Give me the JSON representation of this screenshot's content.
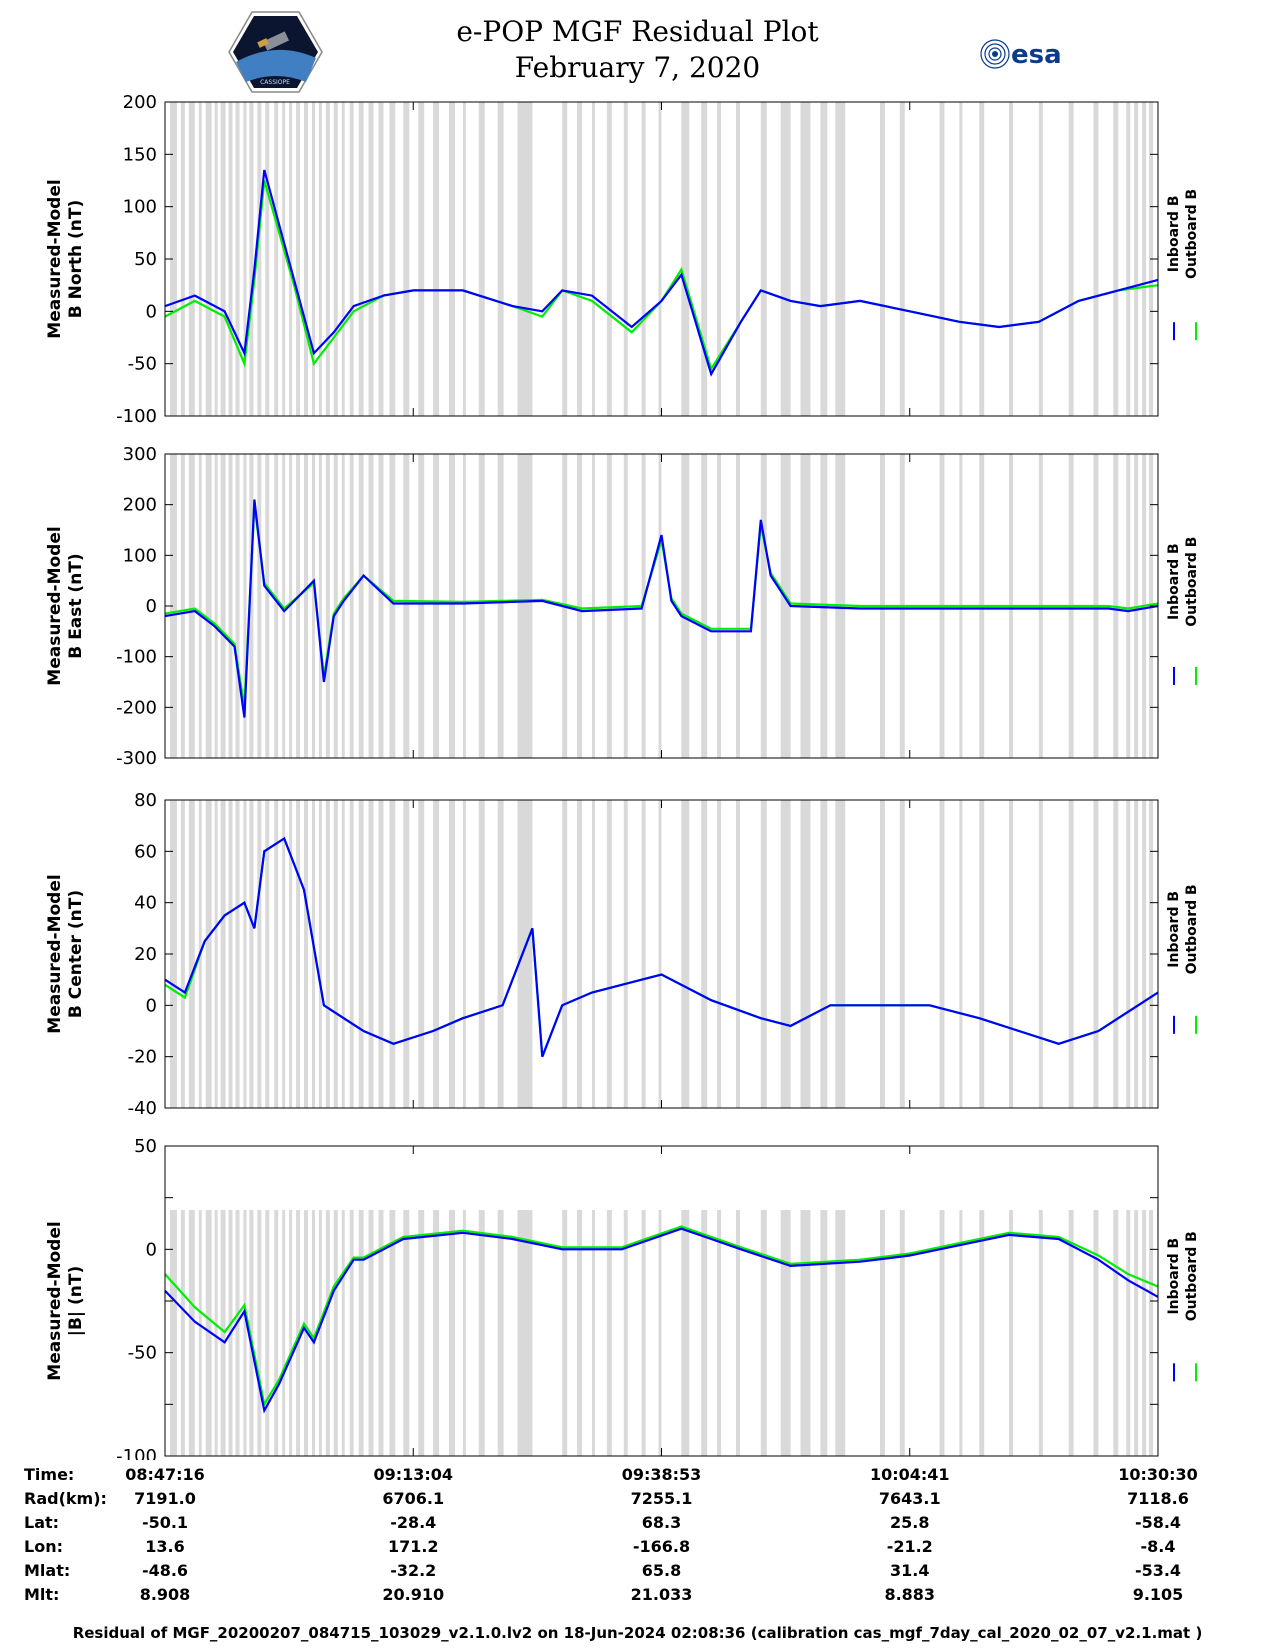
{
  "header": {
    "title_line1": "e-POP MGF Residual Plot",
    "title_line2": "February 7, 2020",
    "left_logo": "cassiope-mission-logo",
    "left_logo_text": "CASSIOPE",
    "right_logo_text": "esa"
  },
  "colors": {
    "inboard": "#0000ff",
    "outboard": "#00ee00",
    "gap_shading": "#d9d9d9"
  },
  "legend": {
    "inboard": "Inboard B",
    "outboard": "Outboard B"
  },
  "chart_data": [
    {
      "type": "line",
      "ylabel_line1": "Measured-Model",
      "ylabel_line2": "B North (nT)",
      "ylim": [
        -100,
        200
      ],
      "yticks": [
        "200",
        "150",
        "100",
        "50",
        "0",
        "-50",
        "-100"
      ],
      "xlim": [
        0,
        1
      ],
      "series": [
        {
          "name": "Inboard B",
          "x": [
            0,
            0.03,
            0.06,
            0.08,
            0.09,
            0.1,
            0.13,
            0.15,
            0.17,
            0.19,
            0.22,
            0.25,
            0.3,
            0.35,
            0.38,
            0.4,
            0.43,
            0.47,
            0.5,
            0.52,
            0.55,
            0.58,
            0.6,
            0.63,
            0.66,
            0.7,
            0.75,
            0.8,
            0.84,
            0.88,
            0.92,
            0.96,
            1.0
          ],
          "y": [
            5,
            15,
            0,
            -40,
            40,
            135,
            30,
            -40,
            -20,
            5,
            15,
            20,
            20,
            5,
            0,
            20,
            15,
            -15,
            10,
            35,
            -60,
            -10,
            20,
            10,
            5,
            10,
            0,
            -10,
            -15,
            -10,
            10,
            20,
            30
          ]
        },
        {
          "name": "Outboard B",
          "x": [
            0,
            0.03,
            0.06,
            0.08,
            0.09,
            0.1,
            0.13,
            0.15,
            0.17,
            0.19,
            0.22,
            0.25,
            0.3,
            0.35,
            0.38,
            0.4,
            0.43,
            0.47,
            0.5,
            0.52,
            0.55,
            0.58,
            0.6,
            0.63,
            0.66,
            0.7,
            0.75,
            0.8,
            0.84,
            0.88,
            0.92,
            0.96,
            1.0
          ],
          "y": [
            -5,
            10,
            -5,
            -50,
            30,
            125,
            25,
            -50,
            -25,
            0,
            15,
            20,
            20,
            5,
            -5,
            20,
            10,
            -20,
            10,
            40,
            -55,
            -10,
            20,
            10,
            5,
            10,
            0,
            -10,
            -15,
            -10,
            10,
            20,
            25
          ]
        }
      ]
    },
    {
      "type": "line",
      "ylabel_line1": "Measured-Model",
      "ylabel_line2": "B East (nT)",
      "ylim": [
        -300,
        300
      ],
      "yticks": [
        "300",
        "200",
        "100",
        "0",
        "-100",
        "-200",
        "-300"
      ],
      "xlim": [
        0,
        1
      ],
      "series": [
        {
          "name": "Inboard B",
          "x": [
            0,
            0.03,
            0.05,
            0.07,
            0.08,
            0.09,
            0.1,
            0.12,
            0.15,
            0.16,
            0.17,
            0.18,
            0.2,
            0.23,
            0.3,
            0.38,
            0.42,
            0.48,
            0.5,
            0.51,
            0.52,
            0.55,
            0.59,
            0.6,
            0.61,
            0.63,
            0.7,
            0.75,
            0.85,
            0.95,
            0.97,
            1.0
          ],
          "y": [
            -20,
            -10,
            -40,
            -80,
            -220,
            210,
            40,
            -10,
            50,
            -150,
            -20,
            10,
            60,
            5,
            5,
            10,
            -10,
            -5,
            140,
            10,
            -20,
            -50,
            -50,
            170,
            60,
            0,
            -5,
            -5,
            -5,
            -5,
            -10,
            0
          ]
        },
        {
          "name": "Outboard B",
          "x": [
            0,
            0.03,
            0.05,
            0.07,
            0.08,
            0.09,
            0.1,
            0.12,
            0.15,
            0.16,
            0.17,
            0.18,
            0.2,
            0.23,
            0.3,
            0.38,
            0.42,
            0.48,
            0.5,
            0.51,
            0.52,
            0.55,
            0.59,
            0.6,
            0.61,
            0.63,
            0.7,
            0.75,
            0.85,
            0.95,
            0.97,
            1.0
          ],
          "y": [
            -15,
            -5,
            -35,
            -75,
            -200,
            200,
            45,
            -5,
            45,
            -140,
            -15,
            15,
            60,
            10,
            8,
            12,
            -5,
            0,
            130,
            15,
            -15,
            -45,
            -45,
            160,
            65,
            5,
            0,
            0,
            0,
            0,
            -5,
            5
          ]
        }
      ]
    },
    {
      "type": "line",
      "ylabel_line1": "Measured-Model",
      "ylabel_line2": "B Center (nT)",
      "ylim": [
        -40,
        80
      ],
      "yticks": [
        "80",
        "60",
        "40",
        "20",
        "0",
        "-20",
        "-40"
      ],
      "xlim": [
        0,
        1
      ],
      "series": [
        {
          "name": "Inboard B",
          "x": [
            0,
            0.02,
            0.04,
            0.06,
            0.08,
            0.09,
            0.1,
            0.12,
            0.14,
            0.16,
            0.18,
            0.2,
            0.23,
            0.27,
            0.3,
            0.34,
            0.37,
            0.38,
            0.4,
            0.43,
            0.46,
            0.5,
            0.55,
            0.6,
            0.63,
            0.67,
            0.72,
            0.77,
            0.82,
            0.86,
            0.9,
            0.94,
            1.0
          ],
          "y": [
            10,
            5,
            25,
            35,
            40,
            30,
            60,
            65,
            45,
            0,
            -5,
            -10,
            -15,
            -10,
            -5,
            0,
            30,
            -20,
            0,
            5,
            8,
            12,
            2,
            -5,
            -8,
            0,
            0,
            0,
            -5,
            -10,
            -15,
            -10,
            5
          ]
        },
        {
          "name": "Outboard B",
          "x": [
            0,
            0.02,
            0.04,
            0.06,
            0.08,
            0.09,
            0.1,
            0.12,
            0.14,
            0.16,
            0.18,
            0.2,
            0.23,
            0.27,
            0.3,
            0.34,
            0.37,
            0.38,
            0.4,
            0.43,
            0.46,
            0.5,
            0.55,
            0.6,
            0.63,
            0.67,
            0.72,
            0.77,
            0.82,
            0.86,
            0.9,
            0.94,
            1.0
          ],
          "y": [
            8,
            3,
            25,
            35,
            40,
            30,
            60,
            65,
            45,
            0,
            -5,
            -10,
            -15,
            -10,
            -5,
            0,
            30,
            -20,
            0,
            5,
            8,
            12,
            2,
            -5,
            -8,
            0,
            0,
            0,
            -5,
            -10,
            -15,
            -10,
            5
          ]
        }
      ]
    },
    {
      "type": "line",
      "ylabel_line1": "Measured-Model",
      "ylabel_line2": "|B| (nT)",
      "ylim": [
        -100,
        50
      ],
      "yticks": [
        "50",
        "",
        "0",
        "",
        "-50",
        "",
        "-100"
      ],
      "xlim": [
        0,
        1
      ],
      "series": [
        {
          "name": "Inboard B",
          "x": [
            0,
            0.03,
            0.06,
            0.08,
            0.1,
            0.115,
            0.14,
            0.15,
            0.17,
            0.19,
            0.2,
            0.24,
            0.3,
            0.35,
            0.4,
            0.46,
            0.52,
            0.55,
            0.58,
            0.63,
            0.7,
            0.75,
            0.8,
            0.85,
            0.9,
            0.94,
            0.97,
            1.0
          ],
          "y": [
            -20,
            -35,
            -45,
            -30,
            -78,
            -65,
            -38,
            -45,
            -20,
            -5,
            -5,
            5,
            8,
            5,
            0,
            0,
            10,
            5,
            0,
            -8,
            -6,
            -3,
            2,
            7,
            5,
            -5,
            -15,
            -23
          ]
        },
        {
          "name": "Outboard B",
          "x": [
            0,
            0.03,
            0.06,
            0.08,
            0.1,
            0.115,
            0.14,
            0.15,
            0.17,
            0.19,
            0.2,
            0.24,
            0.3,
            0.35,
            0.4,
            0.46,
            0.52,
            0.55,
            0.58,
            0.63,
            0.7,
            0.75,
            0.8,
            0.85,
            0.9,
            0.94,
            0.97,
            1.0
          ],
          "y": [
            -12,
            -28,
            -40,
            -27,
            -75,
            -63,
            -36,
            -43,
            -18,
            -4,
            -4,
            6,
            9,
            6,
            1,
            1,
            11,
            6,
            1,
            -7,
            -5,
            -2,
            3,
            8,
            6,
            -3,
            -12,
            -18
          ]
        }
      ]
    }
  ],
  "time_axis": {
    "row_labels": [
      "Time:",
      "Rad(km):",
      "Lat:",
      "Lon:",
      "Mlat:",
      "Mlt:"
    ],
    "columns": [
      {
        "time": "08:47:16",
        "rad": "7191.0",
        "lat": "-50.1",
        "lon": "13.6",
        "mlat": "-48.6",
        "mlt": "8.908"
      },
      {
        "time": "09:13:04",
        "rad": "6706.1",
        "lat": "-28.4",
        "lon": "171.2",
        "mlat": "-32.2",
        "mlt": "20.910"
      },
      {
        "time": "09:38:53",
        "rad": "7255.1",
        "lat": "68.3",
        "lon": "-166.8",
        "mlat": "65.8",
        "mlt": "21.033"
      },
      {
        "time": "10:04:41",
        "rad": "7643.1",
        "lat": "25.8",
        "lon": "-21.2",
        "mlat": "31.4",
        "mlt": "8.883"
      },
      {
        "time": "10:30:30",
        "rad": "7118.6",
        "lat": "-58.4",
        "lon": "-8.4",
        "mlat": "-53.4",
        "mlt": "9.105"
      }
    ]
  },
  "footer": "Residual of MGF_20200207_084715_103029_v2.1.0.lv2 on 18-Jun-2024 02:08:36 (calibration cas_mgf_7day_cal_2020_02_07_v2.1.mat )"
}
